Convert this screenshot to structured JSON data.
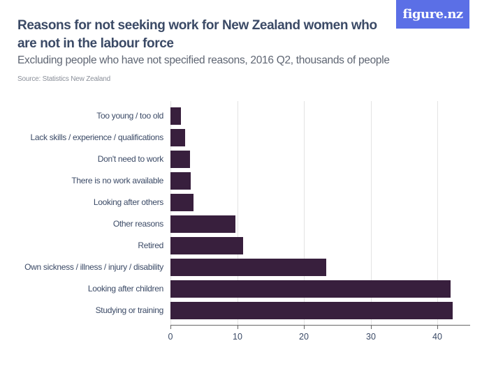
{
  "header": {
    "title": "Reasons for not seeking work for New Zealand women who are not in the labour force",
    "subtitle": "Excluding people who have not specified reasons, 2016 Q2, thousands of people",
    "source": "Source: Statistics New Zealand",
    "logo": "figure.nz"
  },
  "colors": {
    "bar": "#381f3d",
    "logo_bg": "#5b6fe6",
    "title": "#3b4a66"
  },
  "chart_data": {
    "type": "bar",
    "orientation": "horizontal",
    "title": "Reasons for not seeking work for New Zealand women who are not in the labour force",
    "subtitle": "Excluding people who have not specified reasons, 2016 Q2, thousands of people",
    "xlabel": "",
    "ylabel": "",
    "categories": [
      "Too young / too old",
      "Lack skills / experience / qualifications",
      "Don't need to work",
      "There is no work available",
      "Looking after others",
      "Other reasons",
      "Retired",
      "Own sickness / illness / injury / disability",
      "Looking after children",
      "Studying or training"
    ],
    "values": [
      1.6,
      2.2,
      2.9,
      3.0,
      3.5,
      9.7,
      10.9,
      23.4,
      42.0,
      42.3
    ],
    "xlim": [
      0,
      45
    ],
    "xticks": [
      "0",
      "10",
      "20",
      "30",
      "40"
    ],
    "grid": true,
    "legend": null
  }
}
